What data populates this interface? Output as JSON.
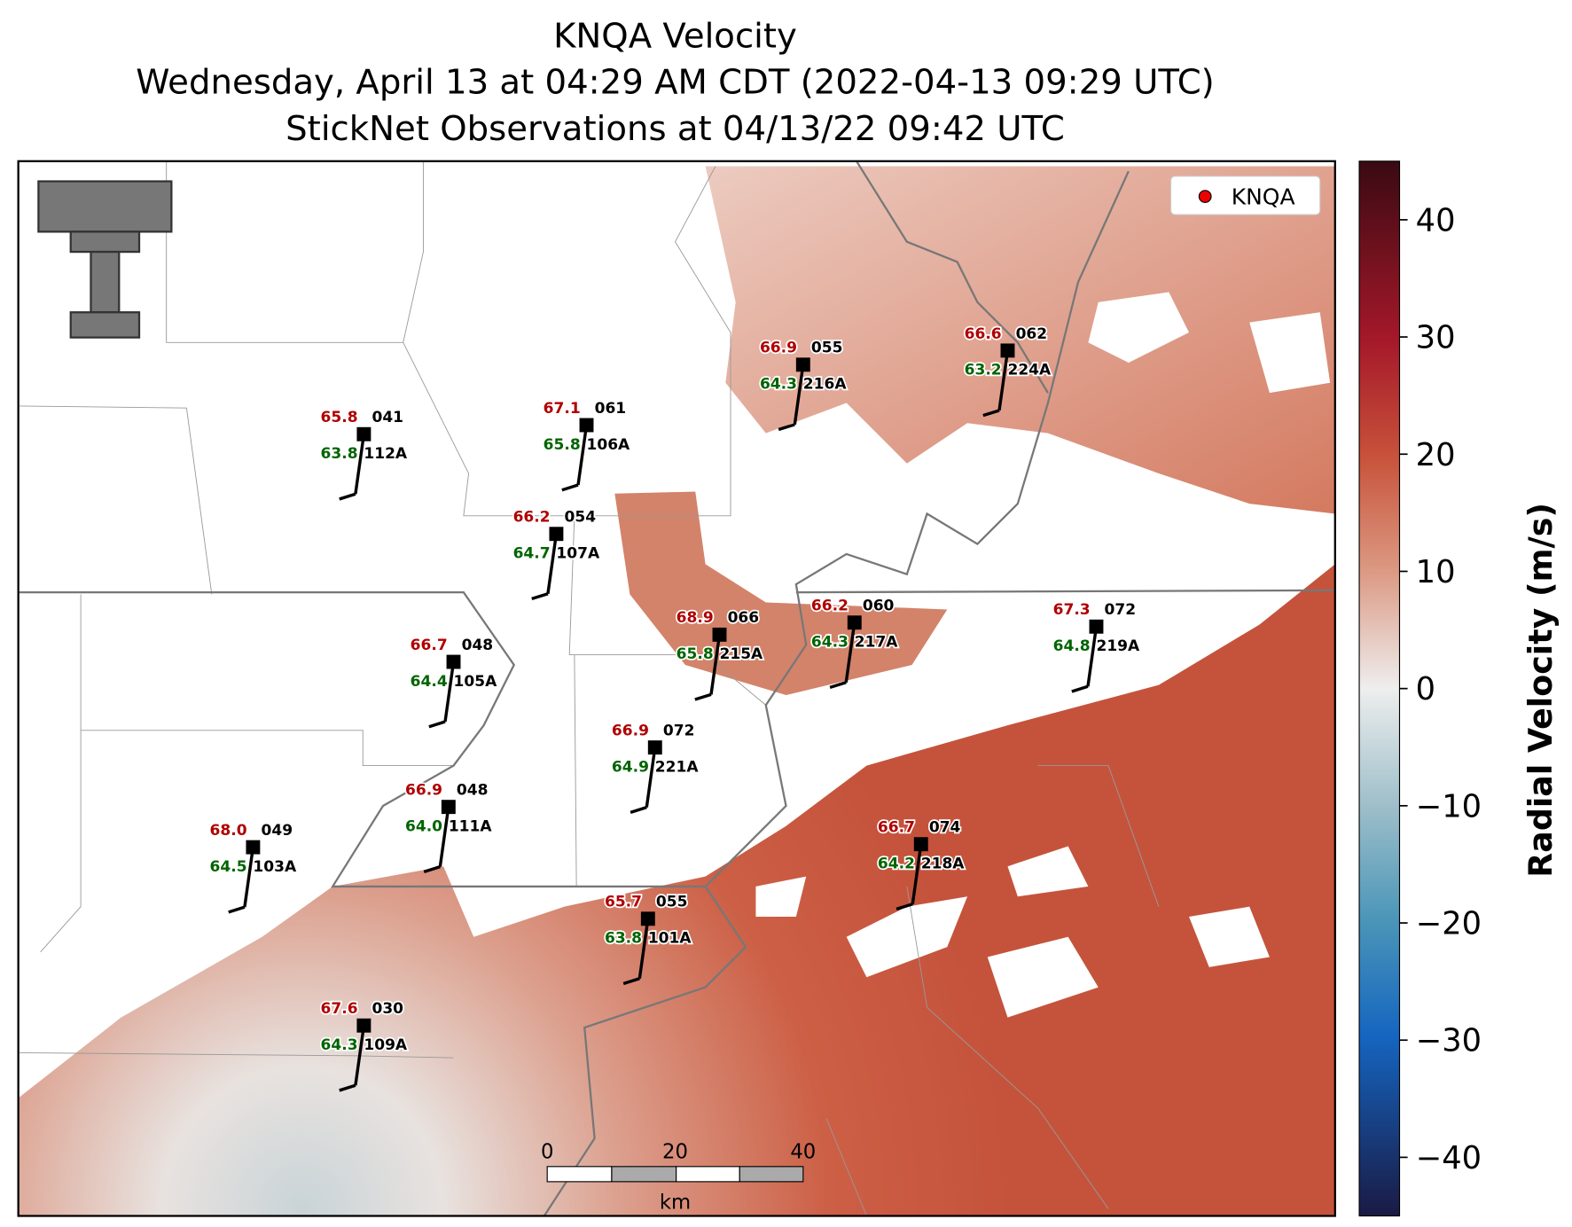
{
  "title": [
    "KNQA Velocity",
    "Wednesday, April 13 at 04:29 AM CDT (2022-04-13 09:29 UTC)",
    "StickNet Observations at 04/13/22 09:42 UTC"
  ],
  "legend": "KNQA",
  "stations": [
    {
      "id": "112A",
      "temperature": "65.8",
      "dewpoint": "63.8",
      "wind_direction": "041"
    },
    {
      "id": "106A",
      "temperature": "67.1",
      "dewpoint": "65.8",
      "wind_direction": "061"
    },
    {
      "id": "216A",
      "temperature": "66.9",
      "dewpoint": "64.3",
      "wind_direction": "055"
    },
    {
      "id": "224A",
      "temperature": "66.6",
      "dewpoint": "63.2",
      "wind_direction": "062"
    },
    {
      "id": "107A",
      "temperature": "66.2",
      "dewpoint": "64.7",
      "wind_direction": "054"
    },
    {
      "id": "215A",
      "temperature": "68.9",
      "dewpoint": "65.8",
      "wind_direction": "066"
    },
    {
      "id": "217A",
      "temperature": "66.2",
      "dewpoint": "64.3",
      "wind_direction": "060"
    },
    {
      "id": "219A",
      "temperature": "67.3",
      "dewpoint": "64.8",
      "wind_direction": "072"
    },
    {
      "id": "105A",
      "temperature": "66.7",
      "dewpoint": "64.4",
      "wind_direction": "048"
    },
    {
      "id": "221A",
      "temperature": "66.9",
      "dewpoint": "64.9",
      "wind_direction": "072"
    },
    {
      "id": "111A",
      "temperature": "66.9",
      "dewpoint": "64.0",
      "wind_direction": "048"
    },
    {
      "id": "103A",
      "temperature": "68.0",
      "dewpoint": "64.5",
      "wind_direction": "049"
    },
    {
      "id": "218A",
      "temperature": "66.7",
      "dewpoint": "64.2",
      "wind_direction": "074"
    },
    {
      "id": "101A",
      "temperature": "65.7",
      "dewpoint": "63.8",
      "wind_direction": "055"
    },
    {
      "id": "109A",
      "temperature": "67.6",
      "dewpoint": "64.3",
      "wind_direction": "030"
    }
  ],
  "scale_bar": {
    "ticks": [
      "0",
      "20",
      "40"
    ],
    "unit": "km"
  },
  "colorbar": {
    "label": "Radial Velocity (m/s)",
    "lim": [
      -45,
      45
    ],
    "ticks": [
      40,
      30,
      20,
      10,
      0,
      {
        "value": -10,
        "label": "−10"
      },
      {
        "value": -20,
        "label": "−20"
      },
      {
        "value": -30,
        "label": "−30"
      },
      {
        "value": -40,
        "label": "−40"
      }
    ]
  }
}
